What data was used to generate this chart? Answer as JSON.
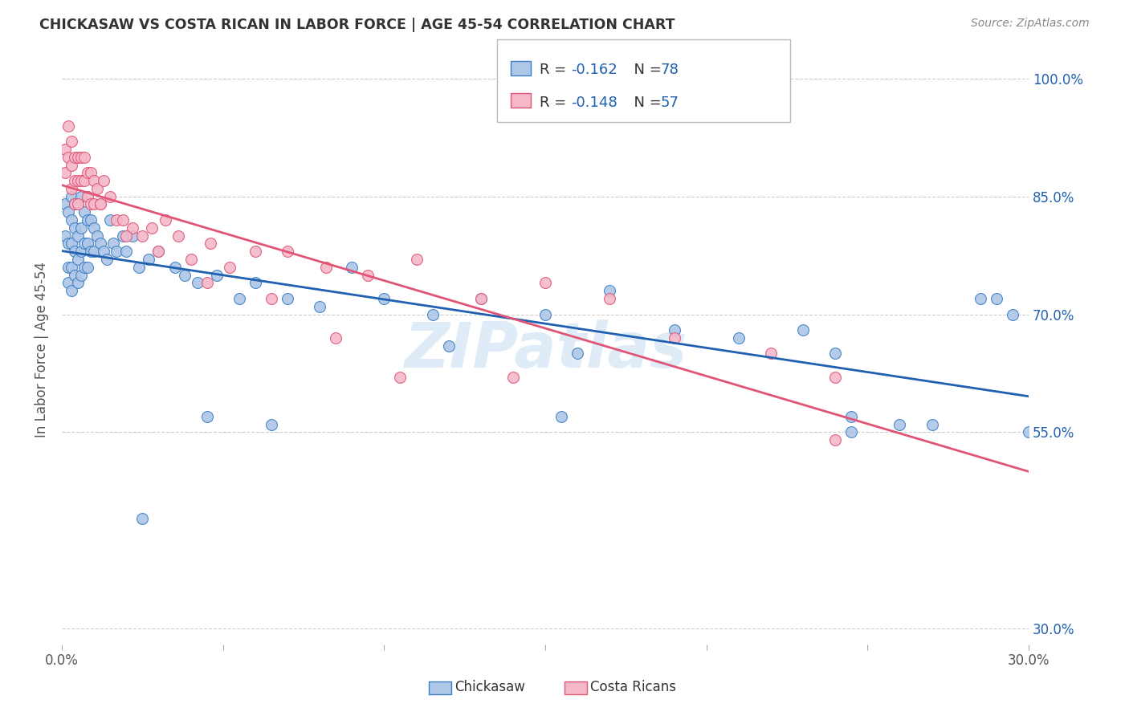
{
  "title": "CHICKASAW VS COSTA RICAN IN LABOR FORCE | AGE 45-54 CORRELATION CHART",
  "source": "Source: ZipAtlas.com",
  "ylabel": "In Labor Force | Age 45-54",
  "xlim": [
    0.0,
    0.3
  ],
  "ylim": [
    0.28,
    1.03
  ],
  "ytick_vals": [
    1.0,
    0.85,
    0.7,
    0.55,
    0.3
  ],
  "ytick_labels": [
    "100.0%",
    "85.0%",
    "70.0%",
    "55.0%",
    "30.0%"
  ],
  "xtick_vals": [
    0.0,
    0.05,
    0.1,
    0.15,
    0.2,
    0.25,
    0.3
  ],
  "xtick_labels": [
    "0.0%",
    "",
    "",
    "",
    "",
    "",
    "30.0%"
  ],
  "chickasaw_fill": "#aec6e8",
  "chickasaw_edge": "#3a7fc1",
  "costarican_fill": "#f4b8c8",
  "costarican_edge": "#e05575",
  "chickasaw_line_color": "#2060b0",
  "costarican_line_color": "#e05575",
  "R_chickasaw": -0.162,
  "N_chickasaw": 78,
  "R_costarican": -0.148,
  "N_costarican": 57,
  "watermark": "ZIPatlas",
  "bg_color": "#ffffff",
  "grid_color": "#cccccc",
  "title_color": "#333333",
  "right_tick_color": "#2060b0",
  "marker_size": 100,
  "chickasaw_x": [
    0.001,
    0.001,
    0.002,
    0.002,
    0.002,
    0.002,
    0.003,
    0.003,
    0.003,
    0.003,
    0.003,
    0.004,
    0.004,
    0.004,
    0.004,
    0.005,
    0.005,
    0.005,
    0.005,
    0.006,
    0.006,
    0.006,
    0.006,
    0.007,
    0.007,
    0.007,
    0.008,
    0.008,
    0.008,
    0.009,
    0.009,
    0.01,
    0.01,
    0.011,
    0.012,
    0.013,
    0.014,
    0.015,
    0.016,
    0.017,
    0.019,
    0.02,
    0.022,
    0.024,
    0.027,
    0.03,
    0.035,
    0.038,
    0.042,
    0.048,
    0.055,
    0.06,
    0.07,
    0.08,
    0.09,
    0.1,
    0.115,
    0.13,
    0.15,
    0.17,
    0.19,
    0.21,
    0.23,
    0.16,
    0.24,
    0.245,
    0.26,
    0.27,
    0.285,
    0.29,
    0.295,
    0.3,
    0.245,
    0.155,
    0.12,
    0.065,
    0.045,
    0.025
  ],
  "chickasaw_y": [
    0.84,
    0.8,
    0.83,
    0.79,
    0.76,
    0.74,
    0.85,
    0.82,
    0.79,
    0.76,
    0.73,
    0.84,
    0.81,
    0.78,
    0.75,
    0.84,
    0.8,
    0.77,
    0.74,
    0.85,
    0.81,
    0.78,
    0.75,
    0.83,
    0.79,
    0.76,
    0.82,
    0.79,
    0.76,
    0.82,
    0.78,
    0.81,
    0.78,
    0.8,
    0.79,
    0.78,
    0.77,
    0.82,
    0.79,
    0.78,
    0.8,
    0.78,
    0.8,
    0.76,
    0.77,
    0.78,
    0.76,
    0.75,
    0.74,
    0.75,
    0.72,
    0.74,
    0.72,
    0.71,
    0.76,
    0.72,
    0.7,
    0.72,
    0.7,
    0.73,
    0.68,
    0.67,
    0.68,
    0.65,
    0.65,
    0.57,
    0.56,
    0.56,
    0.72,
    0.72,
    0.7,
    0.55,
    0.55,
    0.57,
    0.66,
    0.56,
    0.57,
    0.44
  ],
  "costarican_x": [
    0.001,
    0.001,
    0.002,
    0.002,
    0.003,
    0.003,
    0.003,
    0.004,
    0.004,
    0.004,
    0.005,
    0.005,
    0.005,
    0.006,
    0.006,
    0.007,
    0.007,
    0.008,
    0.008,
    0.009,
    0.009,
    0.01,
    0.01,
    0.011,
    0.012,
    0.013,
    0.015,
    0.017,
    0.019,
    0.022,
    0.025,
    0.028,
    0.032,
    0.036,
    0.04,
    0.046,
    0.052,
    0.06,
    0.07,
    0.082,
    0.095,
    0.11,
    0.13,
    0.15,
    0.17,
    0.19,
    0.22,
    0.24,
    0.012,
    0.02,
    0.03,
    0.045,
    0.065,
    0.085,
    0.105,
    0.14,
    0.24
  ],
  "costarican_y": [
    0.91,
    0.88,
    0.94,
    0.9,
    0.92,
    0.89,
    0.86,
    0.9,
    0.87,
    0.84,
    0.9,
    0.87,
    0.84,
    0.9,
    0.87,
    0.9,
    0.87,
    0.88,
    0.85,
    0.88,
    0.84,
    0.87,
    0.84,
    0.86,
    0.84,
    0.87,
    0.85,
    0.82,
    0.82,
    0.81,
    0.8,
    0.81,
    0.82,
    0.8,
    0.77,
    0.79,
    0.76,
    0.78,
    0.78,
    0.76,
    0.75,
    0.77,
    0.72,
    0.74,
    0.72,
    0.67,
    0.65,
    0.62,
    0.84,
    0.8,
    0.78,
    0.74,
    0.72,
    0.67,
    0.62,
    0.62,
    0.54
  ]
}
